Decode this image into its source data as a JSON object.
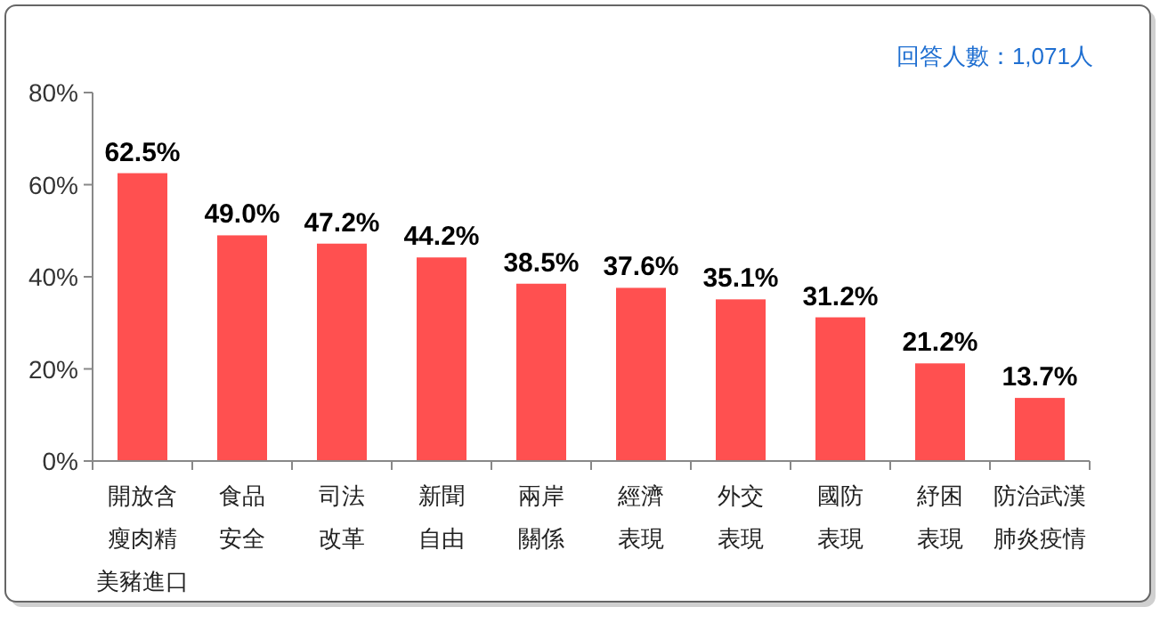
{
  "chart_data": {
    "type": "bar",
    "categories": [
      "開放含瘦肉精美豬進口",
      "食品安全",
      "司法改革",
      "新聞自由",
      "兩岸關係",
      "經濟表現",
      "外交表現",
      "國防表現",
      "紓困表現",
      "防治武漢肺炎疫情"
    ],
    "values": [
      62.5,
      49.0,
      47.2,
      44.2,
      38.5,
      37.6,
      35.1,
      31.2,
      21.2,
      13.7
    ],
    "value_labels": [
      "62.5%",
      "49.0%",
      "47.2%",
      "44.2%",
      "38.5%",
      "37.6%",
      "35.1%",
      "31.2%",
      "21.2%",
      "13.7%"
    ],
    "color": "#ff5050",
    "ylim": [
      0,
      80
    ],
    "yticks": [
      {
        "value": 0,
        "label": "0%"
      },
      {
        "value": 20,
        "label": "20%"
      },
      {
        "value": 40,
        "label": "40%"
      },
      {
        "value": 60,
        "label": "60%"
      },
      {
        "value": 80,
        "label": "80%"
      }
    ],
    "annotations": [
      "回答人數：1,071人"
    ]
  }
}
